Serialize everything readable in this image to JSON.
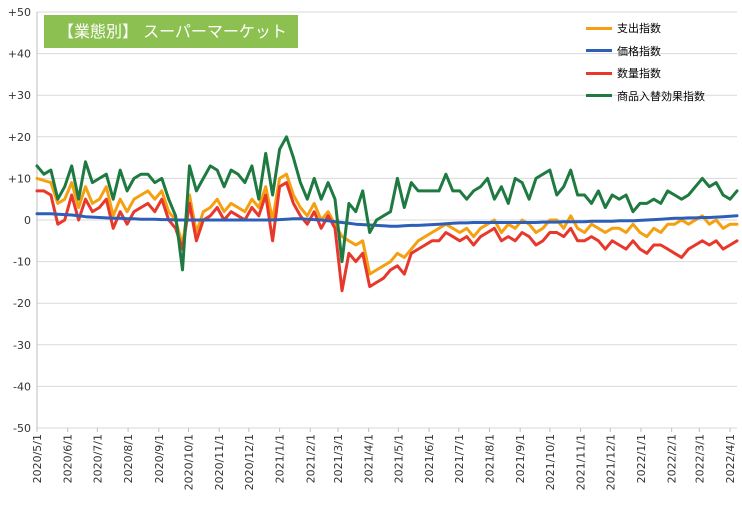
{
  "chart_data": {
    "type": "line",
    "title": "【業態別】 スーパーマーケット",
    "ylim": [
      -50,
      50
    ],
    "yticks": [
      50,
      40,
      30,
      20,
      10,
      0,
      -10,
      -20,
      -30,
      -40,
      -50
    ],
    "ytick_labels": [
      "+50",
      "+40",
      "+30",
      "+20",
      "+10",
      "0",
      "-10",
      "-20",
      "-30",
      "-40",
      "-50"
    ],
    "grid": "horizontal",
    "legend_position": "top-right",
    "xlabel": "",
    "ylabel": "",
    "x_labels": [
      "2020/5/1",
      "2020/6/1",
      "2020/7/1",
      "2020/8/1",
      "2020/9/1",
      "2020/10/1",
      "2020/11/1",
      "2020/12/1",
      "2021/1/1",
      "2021/2/1",
      "2021/3/1",
      "2021/4/1",
      "2021/5/1",
      "2021/6/1",
      "2021/7/1",
      "2021/8/1",
      "2021/9/1",
      "2021/10/1",
      "2021/11/1",
      "2021/12/1",
      "2022/1/1",
      "2022/2/1",
      "2022/3/1",
      "2022/4/1"
    ],
    "x": [
      "2020/5/1",
      "2020/5/8",
      "2020/5/15",
      "2020/5/22",
      "2020/5/29",
      "2020/6/5",
      "2020/6/12",
      "2020/6/19",
      "2020/6/26",
      "2020/7/3",
      "2020/7/10",
      "2020/7/17",
      "2020/7/24",
      "2020/7/31",
      "2020/8/7",
      "2020/8/14",
      "2020/8/21",
      "2020/8/28",
      "2020/9/4",
      "2020/9/11",
      "2020/9/18",
      "2020/9/25",
      "2020/10/2",
      "2020/10/9",
      "2020/10/16",
      "2020/10/23",
      "2020/10/30",
      "2020/11/6",
      "2020/11/13",
      "2020/11/20",
      "2020/11/27",
      "2020/12/4",
      "2020/12/11",
      "2020/12/18",
      "2020/12/25",
      "2021/1/1",
      "2021/1/8",
      "2021/1/15",
      "2021/1/22",
      "2021/1/29",
      "2021/2/5",
      "2021/2/12",
      "2021/2/19",
      "2021/2/26",
      "2021/3/5",
      "2021/3/12",
      "2021/3/19",
      "2021/3/26",
      "2021/4/2",
      "2021/4/9",
      "2021/4/16",
      "2021/4/23",
      "2021/4/30",
      "2021/5/7",
      "2021/5/14",
      "2021/5/21",
      "2021/5/28",
      "2021/6/4",
      "2021/6/11",
      "2021/6/18",
      "2021/6/25",
      "2021/7/2",
      "2021/7/9",
      "2021/7/16",
      "2021/7/23",
      "2021/7/30",
      "2021/8/6",
      "2021/8/13",
      "2021/8/20",
      "2021/8/27",
      "2021/9/3",
      "2021/9/10",
      "2021/9/17",
      "2021/9/24",
      "2021/10/1",
      "2021/10/8",
      "2021/10/15",
      "2021/10/22",
      "2021/10/29",
      "2021/11/5",
      "2021/11/12",
      "2021/11/19",
      "2021/11/26",
      "2021/12/3",
      "2021/12/10",
      "2021/12/17",
      "2021/12/24",
      "2021/12/31",
      "2022/1/7",
      "2022/1/14",
      "2022/1/21",
      "2022/1/28",
      "2022/2/4",
      "2022/2/11",
      "2022/2/18",
      "2022/2/25",
      "2022/3/4",
      "2022/3/11",
      "2022/3/18",
      "2022/3/25",
      "2022/4/1",
      "2022/4/8"
    ],
    "series": [
      {
        "name": "支出指数",
        "color": "#f5a011",
        "values": [
          10,
          9.5,
          9,
          4,
          5,
          9,
          3,
          8,
          4,
          5,
          8,
          1,
          5,
          2,
          5,
          6,
          7,
          5,
          7,
          2,
          0,
          -6,
          6,
          -3,
          2,
          3,
          5,
          2,
          4,
          3,
          2,
          5,
          3,
          8,
          0,
          10,
          11,
          6,
          3,
          1,
          4,
          0,
          2,
          -1,
          -4,
          -5,
          -6,
          -5,
          -13,
          -12,
          -11,
          -10,
          -8,
          -9,
          -7,
          -5,
          -4,
          -3,
          -2,
          -1,
          -2,
          -3,
          -2,
          -4,
          -2,
          -1,
          0,
          -3,
          -1,
          -2,
          0,
          -1,
          -3,
          -2,
          0,
          0,
          -2,
          1,
          -2,
          -3,
          -1,
          -2,
          -3,
          -2,
          -2,
          -3,
          -1,
          -3,
          -4,
          -2,
          -3,
          -1,
          -1,
          0,
          -1,
          0,
          1,
          -1,
          0,
          -2,
          -1,
          -1
        ]
      },
      {
        "name": "価格指数",
        "color": "#2e5fb8",
        "values": [
          1.5,
          1.5,
          1.5,
          1.4,
          1.3,
          1.2,
          1,
          0.8,
          0.7,
          0.6,
          0.5,
          0.4,
          0.4,
          0.3,
          0.3,
          0.2,
          0.2,
          0.2,
          0.1,
          0.1,
          0,
          0,
          0,
          0,
          0,
          0,
          0,
          0,
          0,
          0,
          0,
          0,
          0,
          0,
          0,
          0.1,
          0.2,
          0.3,
          0.3,
          0.2,
          0.1,
          0,
          -0.2,
          -0.4,
          -0.6,
          -0.8,
          -1,
          -1.1,
          -1.2,
          -1.3,
          -1.4,
          -1.5,
          -1.5,
          -1.4,
          -1.3,
          -1.3,
          -1.2,
          -1.1,
          -1,
          -0.9,
          -0.8,
          -0.7,
          -0.7,
          -0.6,
          -0.6,
          -0.6,
          -0.6,
          -0.6,
          -0.6,
          -0.6,
          -0.6,
          -0.6,
          -0.6,
          -0.5,
          -0.5,
          -0.5,
          -0.4,
          -0.4,
          -0.4,
          -0.4,
          -0.3,
          -0.3,
          -0.3,
          -0.3,
          -0.2,
          -0.2,
          -0.2,
          -0.1,
          0,
          0.1,
          0.2,
          0.3,
          0.4,
          0.4,
          0.5,
          0.5,
          0.6,
          0.6,
          0.7,
          0.8,
          0.9,
          1
        ]
      },
      {
        "name": "数量指数",
        "color": "#e8382b",
        "values": [
          7,
          7,
          6,
          -1,
          0,
          6,
          0,
          5,
          2,
          3,
          5,
          -2,
          2,
          -1,
          2,
          3,
          4,
          2,
          5,
          0,
          -2,
          -7,
          4,
          -5,
          0,
          1,
          3,
          0,
          2,
          1,
          0,
          3,
          1,
          6,
          -5,
          8,
          9,
          4,
          1,
          -1,
          2,
          -2,
          1,
          -2,
          -17,
          -8,
          -10,
          -8,
          -16,
          -15,
          -14,
          -12,
          -11,
          -13,
          -8,
          -7,
          -6,
          -5,
          -5,
          -3,
          -4,
          -5,
          -4,
          -6,
          -4,
          -3,
          -2,
          -5,
          -4,
          -5,
          -3,
          -4,
          -6,
          -5,
          -3,
          -3,
          -4,
          -2,
          -5,
          -5,
          -4,
          -5,
          -7,
          -5,
          -6,
          -7,
          -5,
          -7,
          -8,
          -6,
          -6,
          -7,
          -8,
          -9,
          -7,
          -6,
          -5,
          -6,
          -5,
          -7,
          -6,
          -5
        ]
      },
      {
        "name": "商品入替効果指数",
        "color": "#1e7a40",
        "values": [
          13,
          11,
          12,
          5,
          8,
          13,
          5,
          14,
          9,
          10,
          11,
          5,
          12,
          7,
          10,
          11,
          11,
          9,
          10,
          5,
          1,
          -12,
          13,
          7,
          10,
          13,
          12,
          8,
          12,
          11,
          9,
          13,
          5,
          16,
          6,
          17,
          20,
          15,
          9,
          5,
          10,
          5,
          9,
          5,
          -10,
          4,
          2,
          7,
          -3,
          0,
          1,
          2,
          10,
          3,
          9,
          7,
          7,
          7,
          7,
          11,
          7,
          7,
          5,
          7,
          8,
          10,
          5,
          8,
          4,
          10,
          9,
          5,
          10,
          11,
          12,
          6,
          8,
          12,
          6,
          6,
          4,
          7,
          3,
          6,
          5,
          6,
          2,
          4,
          4,
          5,
          4,
          7,
          6,
          5,
          6,
          8,
          10,
          8,
          9,
          6,
          5,
          7
        ]
      }
    ]
  }
}
